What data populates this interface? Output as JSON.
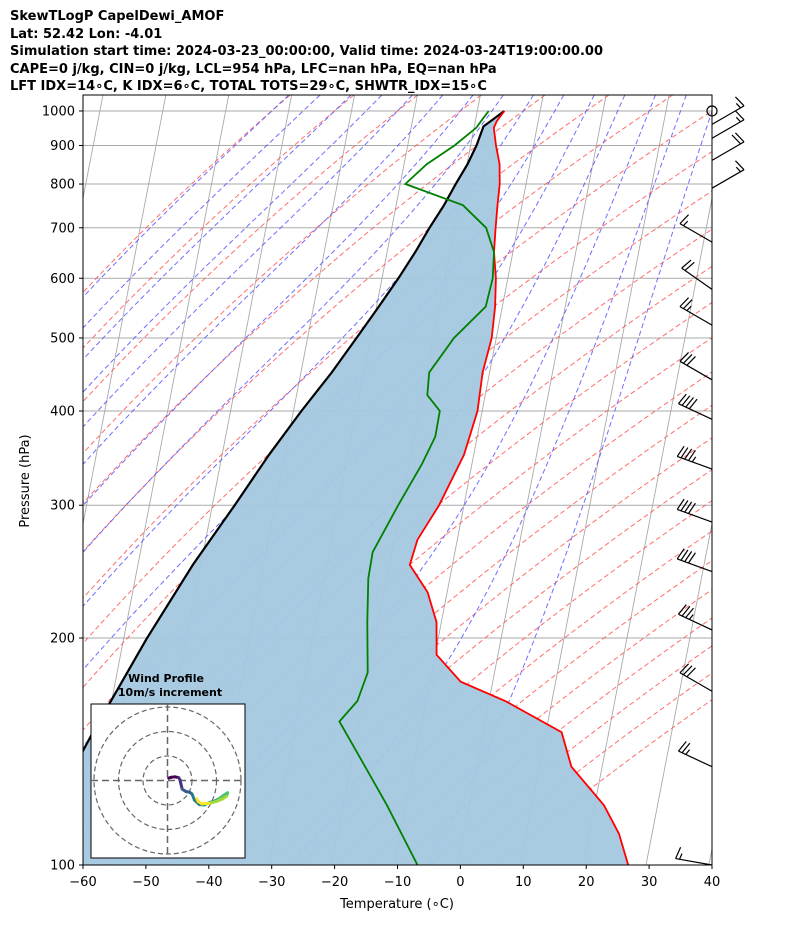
{
  "title_lines": [
    "SkewTLogP CapelDewi_AMOF",
    "Lat: 52.42   Lon: -4.01",
    "Simulation start time: 2024-03-23_00:00:00, Valid time: 2024-03-24T19:00:00.00",
    "CAPE=0 j/kg, CIN=0 j/kg, LCL=954 hPa, LFC=nan hPa, EQ=nan hPa",
    "LFT IDX=14∘C, K IDX=6∘C, TOTAL TOTS=29∘C, SHWTR_IDX=15∘C"
  ],
  "colors": {
    "temperature": "#ff0000",
    "dewpoint": "#008000",
    "parcel": "#000000",
    "cin_cape_fill": "#a4c8e0",
    "dry_adiabat": "#ff5555",
    "moist_adiabat": "#5555ff",
    "isotherm": "#aaaaaa",
    "mixing_ratio": "#9f4fcf"
  },
  "chart_data": {
    "type": "skewt",
    "xlabel": "Temperature (∘C)",
    "ylabel": "Pressure (hPa)",
    "xlim": [
      -60,
      40
    ],
    "ylim": [
      1050,
      100
    ],
    "grid": true,
    "x_ticks": [
      "−60",
      "−50",
      "−40",
      "−30",
      "−20",
      "−10",
      "0",
      "10",
      "20",
      "30",
      "40"
    ],
    "x_tick_values": [
      -60,
      -50,
      -40,
      -30,
      -20,
      -10,
      0,
      10,
      20,
      30,
      40
    ],
    "y_ticks": [
      "100",
      "200",
      "300",
      "400",
      "500",
      "600",
      "700",
      "800",
      "900",
      "1000"
    ],
    "y_tick_values": [
      100,
      200,
      300,
      400,
      500,
      600,
      700,
      800,
      900,
      1000
    ],
    "temperature_profile": [
      [
        1000,
        7
      ],
      [
        970,
        5.5
      ],
      [
        950,
        4.8
      ],
      [
        900,
        4.6
      ],
      [
        850,
        4.6
      ],
      [
        800,
        4.0
      ],
      [
        750,
        3.0
      ],
      [
        700,
        2.0
      ],
      [
        650,
        1.0
      ],
      [
        600,
        0.5
      ],
      [
        550,
        -0.5
      ],
      [
        500,
        -2.0
      ],
      [
        450,
        -4.5
      ],
      [
        400,
        -6.5
      ],
      [
        350,
        -10.0
      ],
      [
        300,
        -15.5
      ],
      [
        270,
        -20.0
      ],
      [
        250,
        -22.0
      ],
      [
        230,
        -20.0
      ],
      [
        210,
        -19.5
      ],
      [
        190,
        -20.5
      ],
      [
        175,
        -17.5
      ],
      [
        165,
        -11.0
      ],
      [
        150,
        -3.0
      ],
      [
        135,
        -2.5
      ],
      [
        120,
        1.5
      ],
      [
        110,
        3.0
      ],
      [
        100,
        3.5
      ]
    ],
    "dewpoint_profile": [
      [
        1000,
        4.5
      ],
      [
        980,
        3.5
      ],
      [
        950,
        2.0
      ],
      [
        900,
        -2.0
      ],
      [
        850,
        -7.0
      ],
      [
        800,
        -11.0
      ],
      [
        750,
        -2.5
      ],
      [
        700,
        0.5
      ],
      [
        650,
        1.0
      ],
      [
        600,
        0.0
      ],
      [
        550,
        -2.0
      ],
      [
        500,
        -8.0
      ],
      [
        450,
        -13.0
      ],
      [
        420,
        -14.0
      ],
      [
        400,
        -12.5
      ],
      [
        370,
        -14.0
      ],
      [
        340,
        -17.0
      ],
      [
        300,
        -22.0
      ],
      [
        260,
        -27.5
      ],
      [
        240,
        -29.0
      ],
      [
        210,
        -30.5
      ],
      [
        180,
        -32.0
      ],
      [
        165,
        -34.5
      ],
      [
        155,
        -38.0
      ],
      [
        140,
        -36.0
      ],
      [
        120,
        -33.0
      ],
      [
        100,
        -30.0
      ]
    ],
    "parcel_profile": [
      [
        1000,
        7.0
      ],
      [
        954,
        3.2
      ],
      [
        900,
        1.5
      ],
      [
        850,
        -0.5
      ],
      [
        800,
        -3.0
      ],
      [
        750,
        -5.5
      ],
      [
        700,
        -8.5
      ],
      [
        650,
        -11.5
      ],
      [
        600,
        -15.0
      ],
      [
        550,
        -19.0
      ],
      [
        500,
        -23.5
      ],
      [
        450,
        -28.5
      ],
      [
        400,
        -34.5
      ],
      [
        350,
        -41.0
      ],
      [
        300,
        -48.0
      ],
      [
        250,
        -56.5
      ],
      [
        200,
        -66.0
      ],
      [
        150,
        -77.5
      ],
      [
        100,
        -93.0
      ]
    ],
    "wind_barbs": [
      {
        "p": 100,
        "speed_kt": 15,
        "dir_deg": 280
      },
      {
        "p": 135,
        "speed_kt": 25,
        "dir_deg": 295
      },
      {
        "p": 170,
        "speed_kt": 30,
        "dir_deg": 300
      },
      {
        "p": 205,
        "speed_kt": 35,
        "dir_deg": 295
      },
      {
        "p": 245,
        "speed_kt": 40,
        "dir_deg": 290
      },
      {
        "p": 285,
        "speed_kt": 40,
        "dir_deg": 290
      },
      {
        "p": 335,
        "speed_kt": 45,
        "dir_deg": 290
      },
      {
        "p": 390,
        "speed_kt": 40,
        "dir_deg": 295
      },
      {
        "p": 440,
        "speed_kt": 30,
        "dir_deg": 300
      },
      {
        "p": 520,
        "speed_kt": 25,
        "dir_deg": 300
      },
      {
        "p": 580,
        "speed_kt": 20,
        "dir_deg": 305
      },
      {
        "p": 670,
        "speed_kt": 15,
        "dir_deg": 300
      },
      {
        "p": 790,
        "speed_kt": 15,
        "dir_deg": 60
      },
      {
        "p": 860,
        "speed_kt": 20,
        "dir_deg": 60
      },
      {
        "p": 920,
        "speed_kt": 15,
        "dir_deg": 60
      },
      {
        "p": 960,
        "speed_kt": 15,
        "dir_deg": 60
      },
      {
        "p": 1000,
        "speed_kt": 0,
        "dir_deg": 0
      }
    ],
    "hodograph": {
      "title": "Wind Profile",
      "subtitle": "10m/s increment",
      "rings_ms": [
        10,
        20,
        30
      ],
      "path_uv": [
        [
          0.5,
          1.0
        ],
        [
          1.5,
          1.3
        ],
        [
          3.0,
          1.5
        ],
        [
          4.5,
          1.2
        ],
        [
          5.0,
          0.5
        ],
        [
          5.5,
          -1.5
        ],
        [
          6.0,
          -3.5
        ],
        [
          7.5,
          -4.5
        ],
        [
          9.0,
          -4.8
        ],
        [
          10.0,
          -5.5
        ],
        [
          11.0,
          -8.0
        ],
        [
          13.0,
          -9.8
        ],
        [
          15.0,
          -10.0
        ],
        [
          17.0,
          -9.0
        ],
        [
          19.0,
          -8.5
        ],
        [
          21.0,
          -7.5
        ],
        [
          23.0,
          -6.0
        ],
        [
          24.5,
          -5.0
        ],
        [
          24.0,
          -6.5
        ],
        [
          22.5,
          -7.5
        ],
        [
          20.0,
          -8.5
        ],
        [
          17.0,
          -9.3
        ],
        [
          14.0,
          -9.5
        ],
        [
          12.5,
          -8.5
        ],
        [
          12.0,
          -7.5
        ]
      ]
    }
  }
}
